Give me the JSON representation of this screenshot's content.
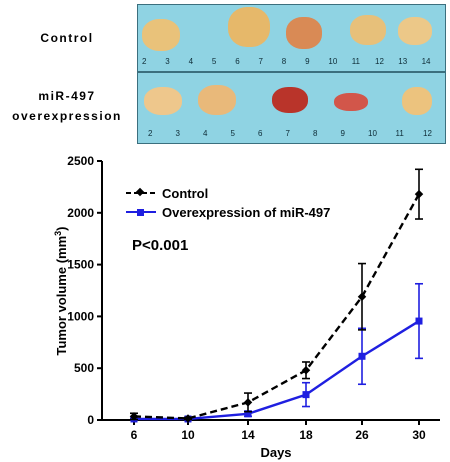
{
  "panels": {
    "top_label": "Control",
    "bottom_label_line1": "miR-497",
    "bottom_label_line2": "overexpression",
    "top_ruler": [
      "2",
      "3",
      "4",
      "5",
      "6",
      "7",
      "8",
      "9",
      "10",
      "11",
      "12",
      "13",
      "14"
    ],
    "bottom_ruler": [
      "2",
      "3",
      "4",
      "5",
      "6",
      "7",
      "8",
      "9",
      "10",
      "11",
      "12"
    ]
  },
  "colors": {
    "control": "#000000",
    "overexpression": "#1f1fe0",
    "photo_bg": "#8fd3e3"
  },
  "chart_data": {
    "type": "line",
    "xlabel": "Days",
    "ylabel": "Tumor volume (mm",
    "ylabel_sup": "3",
    "ylabel_end": ")",
    "x": [
      "6",
      "10",
      "14",
      "18",
      "26",
      "30"
    ],
    "ylim": [
      0,
      2500
    ],
    "yticks": [
      0,
      500,
      1000,
      1500,
      2000,
      2500
    ],
    "annotation": "P<0.001",
    "legend_placement": "top-left",
    "series": [
      {
        "name": "Control",
        "values": [
          35,
          15,
          170,
          480,
          1190,
          2180
        ],
        "errors": [
          30,
          10,
          90,
          80,
          320,
          240
        ],
        "style": "dashed",
        "marker": "diamond"
      },
      {
        "name": "Overexpression of miR-497",
        "values": [
          10,
          10,
          60,
          245,
          615,
          955
        ],
        "errors": [
          8,
          8,
          25,
          115,
          270,
          360
        ],
        "style": "solid",
        "marker": "square"
      }
    ]
  }
}
